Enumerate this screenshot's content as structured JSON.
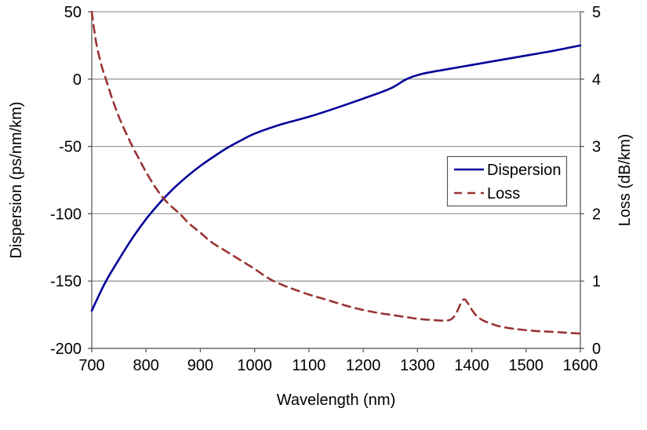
{
  "chart_data": {
    "type": "line",
    "title": "",
    "xlabel": "Wavelength (nm)",
    "ylabel_left": "Dispersion (ps/nm/km)",
    "ylabel_right": "Loss (dB/km)",
    "x_range": [
      700,
      1600
    ],
    "x_ticks": [
      700,
      800,
      900,
      1000,
      1100,
      1200,
      1300,
      1400,
      1500,
      1600
    ],
    "x_tick_labels": [
      "700",
      "800",
      "900",
      "1000",
      "1100",
      "1200",
      "1300",
      "1400",
      "1500",
      "1600"
    ],
    "y_left_range": [
      -200,
      50
    ],
    "y_left_ticks": [
      50,
      0,
      -50,
      -100,
      -150,
      -200
    ],
    "y_left_tick_labels": [
      "50",
      "0",
      "-50",
      "-100",
      "-150",
      "-200"
    ],
    "y_right_range": [
      0,
      5
    ],
    "y_right_ticks": [
      5,
      4,
      3,
      2,
      1,
      0
    ],
    "y_right_tick_labels": [
      "5",
      "4",
      "3",
      "2",
      "1",
      "0"
    ],
    "grid": true,
    "legend": {
      "position": "inside-right",
      "border": true
    },
    "series": [
      {
        "name": "Dispersion",
        "axis": "left",
        "units": "ps/nm/km",
        "color": "#000099",
        "line_style": "solid",
        "points": [
          [
            700,
            -172
          ],
          [
            725,
            -151
          ],
          [
            750,
            -134
          ],
          [
            775,
            -118
          ],
          [
            800,
            -104
          ],
          [
            825,
            -92
          ],
          [
            850,
            -81.5
          ],
          [
            875,
            -72.5
          ],
          [
            900,
            -64.5
          ],
          [
            925,
            -57.5
          ],
          [
            950,
            -51
          ],
          [
            975,
            -45.5
          ],
          [
            1000,
            -40.5
          ],
          [
            1050,
            -33.5
          ],
          [
            1100,
            -28
          ],
          [
            1150,
            -21.5
          ],
          [
            1200,
            -14.5
          ],
          [
            1250,
            -7
          ],
          [
            1280,
            0
          ],
          [
            1310,
            4
          ],
          [
            1350,
            7
          ],
          [
            1400,
            10.5
          ],
          [
            1450,
            14
          ],
          [
            1500,
            17.5
          ],
          [
            1550,
            21
          ],
          [
            1600,
            25
          ]
        ]
      },
      {
        "name": "Loss",
        "axis": "right",
        "units": "dB/km",
        "color": "#993333",
        "line_style": "dashed",
        "points": [
          [
            700,
            5.0
          ],
          [
            708,
            4.55
          ],
          [
            718,
            4.2
          ],
          [
            726,
            4.0
          ],
          [
            738,
            3.7
          ],
          [
            752,
            3.4
          ],
          [
            763,
            3.2
          ],
          [
            775,
            3.0
          ],
          [
            788,
            2.8
          ],
          [
            800,
            2.62
          ],
          [
            815,
            2.42
          ],
          [
            830,
            2.25
          ],
          [
            845,
            2.12
          ],
          [
            862,
            2.0
          ],
          [
            880,
            1.85
          ],
          [
            900,
            1.72
          ],
          [
            920,
            1.58
          ],
          [
            940,
            1.48
          ],
          [
            960,
            1.38
          ],
          [
            980,
            1.28
          ],
          [
            1000,
            1.18
          ],
          [
            1018,
            1.08
          ],
          [
            1035,
            1.0
          ],
          [
            1055,
            0.93
          ],
          [
            1075,
            0.87
          ],
          [
            1100,
            0.8
          ],
          [
            1125,
            0.74
          ],
          [
            1150,
            0.68
          ],
          [
            1175,
            0.62
          ],
          [
            1200,
            0.57
          ],
          [
            1225,
            0.53
          ],
          [
            1250,
            0.5
          ],
          [
            1275,
            0.47
          ],
          [
            1300,
            0.44
          ],
          [
            1320,
            0.425
          ],
          [
            1340,
            0.415
          ],
          [
            1355,
            0.415
          ],
          [
            1365,
            0.45
          ],
          [
            1373,
            0.55
          ],
          [
            1380,
            0.67
          ],
          [
            1386,
            0.73
          ],
          [
            1392,
            0.68
          ],
          [
            1398,
            0.6
          ],
          [
            1405,
            0.52
          ],
          [
            1412,
            0.46
          ],
          [
            1422,
            0.41
          ],
          [
            1435,
            0.37
          ],
          [
            1450,
            0.33
          ],
          [
            1470,
            0.3
          ],
          [
            1490,
            0.28
          ],
          [
            1515,
            0.26
          ],
          [
            1540,
            0.25
          ],
          [
            1570,
            0.235
          ],
          [
            1600,
            0.22
          ]
        ]
      }
    ],
    "colors": {
      "background": "#ffffff",
      "plot_background": "#ffffff",
      "gridline": "#9b9b9b",
      "axis": "#5a5a5a",
      "text": "#000000",
      "legend_border": "#5a5a5a",
      "legend_fill": "#ffffff"
    }
  }
}
